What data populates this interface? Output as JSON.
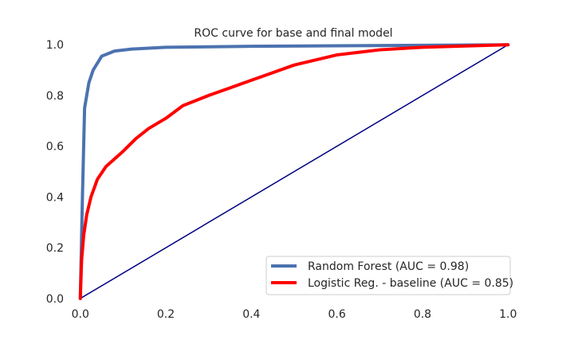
{
  "chart_data": {
    "type": "line",
    "title": "ROC curve for base and final model",
    "xlabel": "",
    "ylabel": "",
    "xlim": [
      -0.02,
      1.02
    ],
    "ylim": [
      -0.01,
      1.01
    ],
    "x_ticks": [
      0.0,
      0.2,
      0.4,
      0.6,
      0.8,
      1.0
    ],
    "y_ticks": [
      0.0,
      0.2,
      0.4,
      0.6,
      0.8,
      1.0
    ],
    "x_tick_labels": [
      "0.0",
      "0.2",
      "0.4",
      "0.6",
      "0.8",
      "1.0"
    ],
    "y_tick_labels": [
      "0.0",
      "0.2",
      "0.4",
      "0.6",
      "0.8",
      "1.0"
    ],
    "grid": false,
    "legend_position": "lower-right",
    "series": [
      {
        "name": "Random Forest (AUC = 0.98)",
        "color": "#4c72b0",
        "x": [
          0.0,
          0.005,
          0.01,
          0.02,
          0.03,
          0.05,
          0.08,
          0.12,
          0.2,
          0.4,
          0.6,
          0.8,
          1.0
        ],
        "y": [
          0.0,
          0.4,
          0.75,
          0.85,
          0.9,
          0.955,
          0.975,
          0.983,
          0.99,
          0.994,
          0.996,
          0.998,
          1.0
        ]
      },
      {
        "name": "Logistic Reg. - baseline (AUC = 0.85)",
        "color": "#ff0000",
        "x": [
          0.0,
          0.003,
          0.008,
          0.015,
          0.025,
          0.04,
          0.06,
          0.08,
          0.1,
          0.13,
          0.16,
          0.2,
          0.24,
          0.3,
          0.35,
          0.4,
          0.45,
          0.5,
          0.55,
          0.6,
          0.65,
          0.7,
          0.8,
          0.9,
          1.0
        ],
        "y": [
          0.0,
          0.15,
          0.25,
          0.33,
          0.4,
          0.47,
          0.52,
          0.55,
          0.58,
          0.63,
          0.67,
          0.71,
          0.76,
          0.8,
          0.83,
          0.86,
          0.89,
          0.92,
          0.94,
          0.96,
          0.97,
          0.98,
          0.99,
          0.995,
          1.0
        ]
      },
      {
        "name": "",
        "color": "#000080",
        "x": [
          0.0,
          1.0
        ],
        "y": [
          0.0,
          1.0
        ]
      }
    ],
    "legend": [
      {
        "label": "Random Forest (AUC = 0.98)",
        "color": "#4c72b0"
      },
      {
        "label": "Logistic Reg. - baseline (AUC = 0.85)",
        "color": "#ff0000"
      }
    ]
  }
}
